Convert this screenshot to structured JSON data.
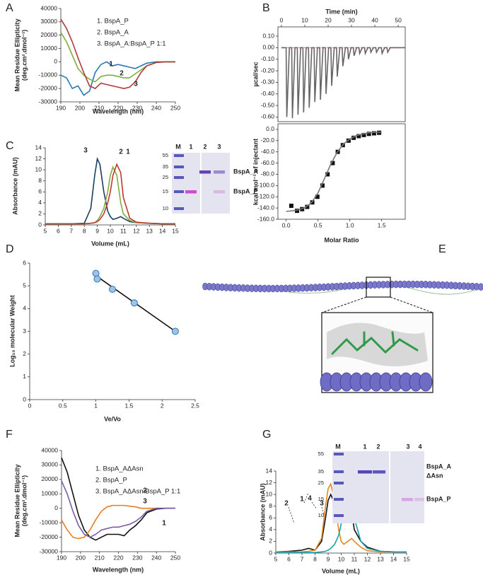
{
  "panels": [
    "A",
    "B",
    "C",
    "D",
    "E",
    "F",
    "G"
  ],
  "chart_data": [
    {
      "type": "line",
      "x_label": "Wavelength (nm)",
      "y_label": [
        "Mean Residue Ellipticity",
        "(deg.cm².dmol⁻¹)"
      ],
      "x": [
        190,
        193,
        196,
        199,
        202,
        205,
        208,
        211,
        214,
        217,
        220,
        223,
        226,
        229,
        232,
        235,
        240,
        245,
        250
      ],
      "series": [
        {
          "name": "1. BspA_P",
          "color": "#2a78b0",
          "values": [
            -10000,
            -12000,
            -20000,
            -18000,
            -25000,
            -22000,
            -8000,
            -2000,
            0,
            -3000,
            -2000,
            -3000,
            -4000,
            -5000,
            -3000,
            -1000,
            0,
            0,
            0
          ]
        },
        {
          "name": "2. BspA_A",
          "color": "#7fae3f",
          "values": [
            22000,
            15000,
            5000,
            -5000,
            -10000,
            -13000,
            -15000,
            -11000,
            -10000,
            -10000,
            -11000,
            -12000,
            -12000,
            -9000,
            -6000,
            -3000,
            -500,
            0,
            0
          ]
        },
        {
          "name": "3. BspA_A:BspA_P 1:1",
          "color": "#b03a3a",
          "values": [
            32000,
            25000,
            15000,
            3000,
            -8000,
            -18000,
            -20000,
            -16000,
            -17000,
            -18000,
            -19000,
            -20000,
            -19000,
            -15000,
            -8000,
            -3000,
            -500,
            0,
            0
          ]
        }
      ],
      "xlim": [
        190,
        250
      ],
      "xticks": [
        190,
        200,
        210,
        220,
        230,
        240,
        250
      ],
      "ylim": [
        -30000,
        40000
      ],
      "yticks": [
        -30000,
        -20000,
        -10000,
        0,
        10000,
        20000,
        30000,
        40000
      ],
      "annotations": [
        "1",
        "2",
        "3"
      ]
    },
    {
      "type": "line",
      "x_label": "Time (min)",
      "y_label": "µcal/sec",
      "series": [
        {
          "color": "#666666",
          "x": [
            0,
            2,
            2.3,
            3.4,
            4.4,
            4.7,
            5.8,
            6.8,
            7.1,
            8.2,
            9.2,
            9.5,
            10.6,
            11.6,
            11.9,
            13,
            14,
            14.3,
            15.4,
            16.4,
            16.7,
            17.8,
            18.8,
            19.1,
            20.2,
            21.2,
            21.5,
            22.6,
            23.6,
            23.9,
            25,
            26,
            26.3,
            27.4,
            28.4,
            28.7,
            29.8,
            30.8,
            31.1,
            32.2,
            33.2,
            33.5,
            34.6,
            35.6,
            35.9,
            37,
            38,
            38.3,
            39.4,
            40.4,
            40.7,
            41.8,
            42.8,
            43.1,
            44.2,
            45.2,
            45.5,
            46.6,
            53
          ],
          "values": [
            0,
            0,
            -0.6,
            0,
            0,
            -0.61,
            0,
            0,
            -0.58,
            0,
            0,
            -0.56,
            0,
            0,
            -0.52,
            0,
            0,
            -0.47,
            0,
            0,
            -0.45,
            0,
            0,
            -0.4,
            0,
            0,
            -0.33,
            0,
            0,
            -0.25,
            0,
            0,
            -0.16,
            0,
            0,
            -0.1,
            0,
            0,
            -0.07,
            0,
            0,
            -0.05,
            0,
            0,
            -0.05,
            0,
            0,
            -0.04,
            0,
            0,
            -0.04,
            0,
            0,
            -0.05,
            0,
            0,
            -0.04,
            0,
            0
          ]
        },
        {
          "color": "#d03030",
          "dash": true,
          "x": [
            0,
            53
          ],
          "values": [
            0,
            0
          ]
        }
      ],
      "xlim": [
        -1.5,
        53
      ],
      "xticks": [
        0,
        10,
        20,
        30,
        40,
        50
      ],
      "ylim": [
        -0.64,
        0.18
      ],
      "yticks": [
        {
          "value": 0.1,
          "label": "0.10"
        },
        {
          "value": 0,
          "label": "0.00"
        },
        {
          "value": -0.1,
          "label": "-0.10"
        },
        {
          "value": -0.2,
          "label": "-0.20"
        },
        {
          "value": -0.3,
          "label": "-0.30"
        },
        {
          "value": -0.4,
          "label": "-0.40"
        },
        {
          "value": -0.5,
          "label": "-0.50"
        },
        {
          "value": -0.6,
          "label": "-0.60"
        }
      ]
    },
    {
      "type": "scatter",
      "x_label": "Molar Ratio",
      "y_label": "kcal mol⁻¹ of injectant",
      "series": [
        {
          "color": "#111111",
          "marker": "square",
          "x": [
            0.08,
            0.17,
            0.25,
            0.33,
            0.41,
            0.49,
            0.57,
            0.65,
            0.73,
            0.81,
            0.89,
            0.98,
            1.06,
            1.14,
            1.22,
            1.3,
            1.38,
            1.46
          ],
          "values": [
            -136,
            -145,
            -142,
            -138,
            -130,
            -120,
            -100,
            -80,
            -60,
            -40,
            -28,
            -20,
            -15,
            -12,
            -10,
            -8,
            -7,
            -6
          ]
        },
        {
          "color": "#777777",
          "x": [
            0,
            0.1,
            0.2,
            0.3,
            0.4,
            0.5,
            0.6,
            0.7,
            0.8,
            0.9,
            1.0,
            1.1,
            1.2,
            1.3,
            1.4,
            1.5
          ],
          "values": [
            -146,
            -145,
            -143,
            -139,
            -130,
            -113,
            -88,
            -62,
            -41,
            -26,
            -17,
            -11,
            -8,
            -6,
            -5,
            -5
          ]
        }
      ],
      "xlim": [
        -0.13,
        1.87
      ],
      "xticks": [
        {
          "value": 0,
          "label": "0.0"
        },
        {
          "value": 0.5,
          "label": "0.5"
        },
        {
          "value": 1,
          "label": "1.0"
        },
        {
          "value": 1.5,
          "label": "1.5"
        }
      ],
      "ylim": [
        -160,
        10
      ],
      "yticks": [
        {
          "value": 0,
          "label": "0.0"
        },
        {
          "value": -20,
          "label": "-20.0"
        },
        {
          "value": -40,
          "label": "-40.0"
        },
        {
          "value": -60,
          "label": "-60.0"
        },
        {
          "value": -80,
          "label": "-80.0"
        },
        {
          "value": -100,
          "label": "-100.0"
        },
        {
          "value": -120,
          "label": "-120.0"
        },
        {
          "value": -140,
          "label": "-140.0"
        },
        {
          "value": -160,
          "label": "-160.0"
        }
      ]
    },
    {
      "type": "line",
      "x_label": "Volume (mL)",
      "y_label": "Absorbance (mAU)",
      "x": [
        5,
        6,
        7,
        8,
        8.5,
        8.8,
        9.0,
        9.2,
        9.5,
        9.8,
        10.0,
        10.2,
        10.5,
        10.8,
        11.0,
        11.5,
        12,
        13,
        14,
        15
      ],
      "series": [
        {
          "color": "#1b3f5e",
          "values": [
            0.2,
            0.2,
            0.2,
            0.3,
            3,
            9,
            12,
            11,
            6,
            2.5,
            1.5,
            1,
            1.2,
            1.5,
            1.2,
            0.6,
            0.4,
            0.3,
            0.2,
            0.2
          ]
        },
        {
          "color": "#7fae3f",
          "values": [
            0.2,
            0.2,
            0.2,
            0.2,
            0.3,
            0.4,
            0.8,
            1.5,
            3,
            6,
            9,
            10.5,
            9,
            4,
            2,
            0.8,
            0.4,
            0.3,
            0.2,
            0.2
          ]
        },
        {
          "color": "#c0392b",
          "values": [
            0.2,
            0.2,
            0.2,
            0.2,
            0.3,
            0.4,
            0.6,
            1.0,
            2,
            4,
            6,
            9,
            11,
            9.5,
            5,
            1.2,
            0.5,
            0.3,
            0.2,
            0.2
          ]
        }
      ],
      "xlim": [
        5,
        15
      ],
      "xticks": [
        5,
        6,
        7,
        8,
        9,
        10,
        11,
        12,
        13,
        14,
        15
      ],
      "ylim": [
        0,
        14
      ],
      "yticks": [
        0,
        2,
        4,
        6,
        8,
        10,
        12,
        14
      ],
      "annotations": [
        "3",
        "2",
        "1"
      ]
    },
    {
      "type": "scatter",
      "x_label": "Ve/Vo",
      "y_label": "Log₁₀ molecular Weight",
      "series": [
        {
          "color": "#111111",
          "x": [
            1,
            2.2
          ],
          "values": [
            5.45,
            3.0
          ]
        },
        {
          "color": "#9dc3e6",
          "marker": "circle",
          "x": [
            1,
            1.02,
            1.25,
            1.58,
            2.2
          ],
          "values": [
            5.55,
            5.3,
            4.85,
            4.25,
            3.0
          ]
        }
      ],
      "xlim": [
        0,
        2.5
      ],
      "xticks": [
        0,
        0.5,
        1,
        1.5,
        2,
        2.5
      ],
      "ylim": [
        0,
        6
      ],
      "yticks": [
        0,
        1,
        2,
        3,
        4,
        5,
        6
      ]
    },
    {
      "type": "line",
      "x_label": "Wavelength (nm)",
      "y_label": [
        "Mean Residue Ellipticity",
        "(deg.cm².dmol⁻¹)"
      ],
      "x": [
        190,
        193,
        196,
        199,
        202,
        205,
        208,
        211,
        214,
        217,
        220,
        223,
        226,
        229,
        232,
        235,
        240,
        245,
        250
      ],
      "series": [
        {
          "name": "1. BspA_AΔAsn",
          "color": "#111111",
          "values": [
            35000,
            25000,
            10000,
            -5000,
            -15000,
            -20000,
            -22000,
            -20000,
            -18000,
            -18000,
            -18000,
            -19000,
            -15000,
            -12000,
            -8000,
            -3000,
            -500,
            0,
            0
          ]
        },
        {
          "name": "2. BspA_P",
          "color": "#e67e22",
          "values": [
            -8000,
            -15000,
            -20000,
            -21000,
            -20000,
            -15000,
            -8000,
            -2000,
            1000,
            2000,
            2000,
            2000,
            1500,
            1000,
            0,
            0,
            0,
            0,
            0
          ]
        },
        {
          "name": "3. BspA_AΔAsn:BspA_P 1:1",
          "color": "#7b5ea7",
          "values": [
            19000,
            10000,
            -2000,
            -12000,
            -18000,
            -20000,
            -18000,
            -15000,
            -14000,
            -13000,
            -13000,
            -12000,
            -11000,
            -9000,
            -6000,
            -2000,
            0,
            0,
            0
          ]
        }
      ],
      "xlim": [
        190,
        250
      ],
      "xticks": [
        190,
        200,
        210,
        220,
        230,
        240,
        250
      ],
      "ylim": [
        -30000,
        40000
      ],
      "yticks": [
        -30000,
        -20000,
        -10000,
        0,
        10000,
        20000,
        30000,
        40000
      ],
      "annotations": [
        "2",
        "3",
        "1"
      ]
    },
    {
      "type": "line",
      "x_label": "Volume (mL)",
      "y_label": "Absorbance (mAU)",
      "x": [
        5,
        6,
        7,
        7.5,
        8,
        8.5,
        8.8,
        9.0,
        9.2,
        9.5,
        9.8,
        10.0,
        10.2,
        10.5,
        10.8,
        11.0,
        11.5,
        12,
        13,
        14,
        15
      ],
      "series": [
        {
          "color": "#111111",
          "values": [
            0.2,
            0.3,
            0.5,
            0.8,
            0.5,
            2,
            6,
            9,
            10,
            8.5,
            6,
            5.5,
            7,
            9,
            7,
            4,
            2,
            1,
            0.3,
            0.2,
            0.2
          ]
        },
        {
          "color": "#e8871e",
          "values": [
            0.2,
            0.2,
            0.2,
            0.3,
            0.5,
            2.5,
            8,
            11,
            11.8,
            9,
            4,
            2,
            1.5,
            2,
            2.5,
            2,
            1,
            0.4,
            0.2,
            0.2,
            0.2
          ]
        },
        {
          "color": "#1a9fb0",
          "values": [
            0.1,
            0.1,
            0.1,
            0.1,
            0.1,
            0.2,
            0.3,
            0.5,
            0.8,
            1.5,
            3,
            5,
            8,
            10.5,
            9,
            6,
            2,
            0.8,
            0.3,
            0.2,
            0.2
          ]
        }
      ],
      "xlim": [
        5,
        15
      ],
      "xticks": [
        5,
        6,
        7,
        8,
        9,
        10,
        11,
        12,
        13,
        14,
        15
      ],
      "ylim": [
        0,
        14
      ],
      "yticks": [
        0,
        2,
        4,
        6,
        8,
        10,
        12,
        14
      ],
      "annotations": [
        "2",
        "1",
        "4",
        "3"
      ]
    }
  ],
  "gels": [
    {
      "lanes": [
        "M",
        "1",
        "2",
        "3"
      ],
      "markers": [
        "55",
        "35",
        "25",
        "15",
        "10"
      ],
      "band_labels": [
        "BspA_A",
        "BspA_P"
      ]
    },
    {
      "lanes": [
        "M",
        "1",
        "2",
        "3",
        "4"
      ],
      "markers": [
        "55",
        "35",
        "25",
        "15",
        "10"
      ],
      "band_labels": [
        "BspA_A",
        "ΔAsn",
        "BspA_P"
      ]
    }
  ]
}
